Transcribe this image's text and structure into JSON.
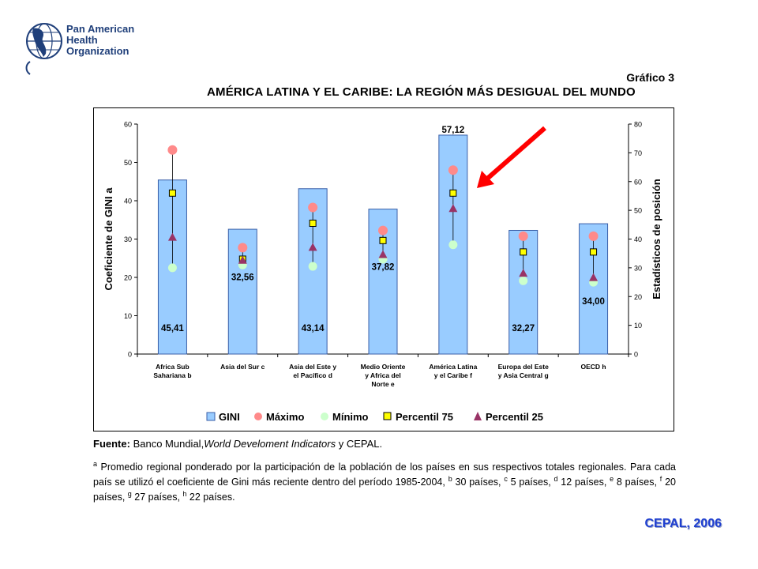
{
  "logo": {
    "line1": "Pan American",
    "line2": "Health",
    "line3": "Organization"
  },
  "chart_number": "Gráfico 3",
  "title": "AMÉRICA LATINA Y EL CARIBE: LA REGIÓN MÁS DESIGUAL DEL MUNDO",
  "colors": {
    "bar": "#99ccff",
    "bar_stroke": "#3a5fa8",
    "maximo": "#ff8a8a",
    "minimo": "#ccffcc",
    "p75": "#ffff00",
    "p25": "#993366",
    "arrow": "#ff0000"
  },
  "chart_data": {
    "type": "bar",
    "categories": [
      [
        "Africa Sub",
        "Sahariana b"
      ],
      [
        "Asia del Sur c"
      ],
      [
        "Asia del Este y",
        "el Pacífico d"
      ],
      [
        "Medio Oriente",
        "y Africa del",
        "Norte e"
      ],
      [
        "América Latina",
        "y el Caribe f"
      ],
      [
        "Europa del Este",
        "y Asia Central g"
      ],
      [
        "OECD h"
      ]
    ],
    "gini": [
      45.41,
      32.56,
      43.14,
      37.82,
      57.12,
      32.27,
      34.0
    ],
    "gini_labels": [
      "45,41",
      "32,56",
      "43,14",
      "37,82",
      "57,12",
      "32,27",
      "34,00"
    ],
    "maximo": [
      71,
      37,
      51,
      43,
      64,
      41,
      41
    ],
    "minimo": [
      30,
      31,
      30.5,
      33,
      38,
      25.5,
      25
    ],
    "p75": [
      56,
      33,
      45.5,
      39.5,
      56,
      35.5,
      35.5
    ],
    "p25": [
      40.5,
      32.5,
      37,
      34.5,
      50.5,
      28,
      26.5
    ],
    "y_left": {
      "label": "Coeficiente de GINI a",
      "min": 0,
      "max": 60,
      "ticks": [
        "0",
        "10",
        "20",
        "30",
        "40",
        "50",
        "60"
      ]
    },
    "y_right": {
      "label": "Estadísticos de posición",
      "min": 0,
      "max": 80,
      "ticks": [
        "0",
        "10",
        "20",
        "30",
        "40",
        "50",
        "60",
        "70",
        "80"
      ]
    },
    "legend": [
      "GINI",
      "Máximo",
      "Mínimo",
      "Percentil 75",
      "Percentil 25"
    ],
    "legend_placement": "bottom"
  },
  "source": {
    "label": "Fuente:",
    "text1": " Banco Mundial,",
    "italic": "World Develoment Indicators",
    "text2": " y CEPAL."
  },
  "notes": "Promedio regional ponderado por la participación de la población de los países en sus respectivos totales regionales. Para cada país se utilizó el coeficiente de Gini más reciente dentro del período 1985-2004,",
  "notes_counts": [
    {
      "sup": "b",
      "text": "30 países,"
    },
    {
      "sup": "c",
      "text": "5 países,"
    },
    {
      "sup": "d",
      "text": "12 países,"
    },
    {
      "sup": "e",
      "text": "8 países,"
    },
    {
      "sup": "f",
      "text": "20 países,"
    },
    {
      "sup": "g",
      "text": "27 países,"
    },
    {
      "sup": "h",
      "text": "22 países."
    }
  ],
  "notes_first_sup": "a",
  "credit": "CEPAL, 2006"
}
